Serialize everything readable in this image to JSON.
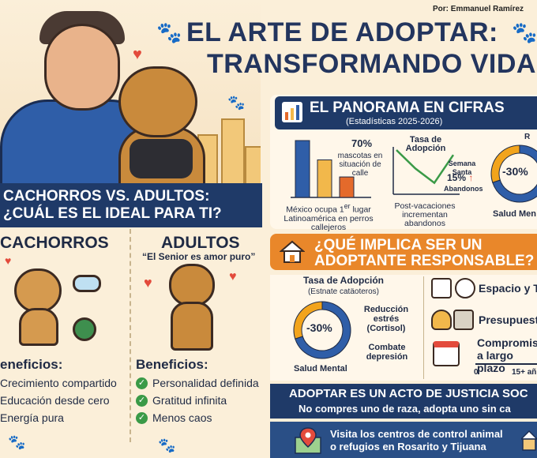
{
  "header": {
    "byline": "Por: Emmanuel Ramírez",
    "title_line1": "EL ARTE DE ADOPTAR:",
    "title_line2": "TRANSFORMANDO VIDAS"
  },
  "comparison": {
    "banner_line1": "CACHORROS VS. ADULTOS:",
    "banner_line2": "¿CUÁL ES EL IDEAL PARA TI?",
    "puppies": {
      "title": "CACHORROS",
      "benefits_title": "eneficios:",
      "benefits": [
        "Crecimiento compartido",
        "Educación desde cero",
        "Energía pura"
      ]
    },
    "adults": {
      "title": "ADULTOS",
      "subtitle": "“El Senior es amor puro”",
      "benefits_title": "Beneficios:",
      "benefits": [
        "Personalidad definida",
        "Gratitud infinita",
        "Menos caos"
      ]
    }
  },
  "figures": {
    "title": "EL PANORAMA EN CIFRAS",
    "subtitle": "(Estadísticas 2025-2026)",
    "bar_stat_value": "70%",
    "bar_stat_label": "mascotas en situación de calle",
    "bar_caption_pre": "México ocupa 1",
    "bar_caption_sup": "er",
    "bar_caption_rest": "lugar Latinoamérica en perros callejeros",
    "line_title": "Tasa de Adopción",
    "line_annotation": "Semana Santa",
    "line_value": "15%",
    "line_value_label": "Abandonos",
    "line_caption": "Post-vacaciones incrementan abandonos",
    "donut_partial_label": "R",
    "donut_value": "-30%",
    "donut_label": "Salud Men"
  },
  "chart_data": [
    {
      "type": "bar",
      "values": [
        100,
        66,
        36
      ],
      "colors": [
        "#2f5ea8",
        "#f2b84b",
        "#e46a2b"
      ]
    },
    {
      "type": "line",
      "y": [
        100,
        55,
        20,
        88
      ]
    },
    {
      "type": "pie",
      "values": [
        70,
        30
      ],
      "colors": [
        "#2f5ea8",
        "#f2a41c"
      ]
    }
  ],
  "responsibility": {
    "banner_line1": "¿QUÉ IMPLICA SER UN",
    "banner_line2": "ADOPTANTE RESPONSABLE?",
    "chart_title": "Tasa de Adopción",
    "chart_subtitle": "(Estnate catäoteros)",
    "donut_value": "-30%",
    "label_reduction": "Reducción estrés (Cortisol)",
    "label_combat": "Combate depresión",
    "donut_caption": "Salud Mental",
    "items": [
      {
        "label": "Espacio y Tie"
      },
      {
        "label": "Presupuesto"
      },
      {
        "label": "Compromiso a largo plazo"
      }
    ],
    "scale_start": "0",
    "scale_end": "15+ añ"
  },
  "justice": {
    "line1": "ADOPTAR ES UN ACTO DE JUSTICIA SOC",
    "line2": "No compres uno de raza, adopta uno sin ca"
  },
  "visit": {
    "line1": "Visita los centros de control animal",
    "line2": "o refugios en Rosarito y Tijuana"
  }
}
